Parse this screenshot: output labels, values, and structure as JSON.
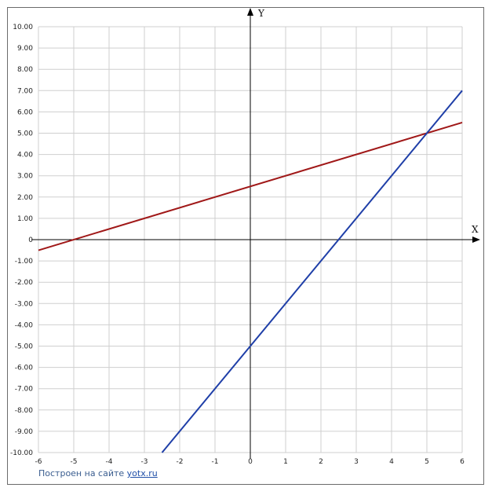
{
  "chart_data": {
    "type": "line",
    "xlabel": "X",
    "ylabel": "Y",
    "xlim": [
      -6,
      6
    ],
    "ylim": [
      -10,
      10
    ],
    "grid": true,
    "x_ticks": [
      "-6",
      "-5",
      "-4",
      "-3",
      "-2",
      "-1",
      "0",
      "1",
      "2",
      "3",
      "4",
      "5",
      "6"
    ],
    "y_ticks": [
      "10.00",
      "9.00",
      "8.00",
      "7.00",
      "6.00",
      "5.00",
      "4.00",
      "3.00",
      "2.00",
      "1.00",
      "0",
      "-1.00",
      "-2.00",
      "-3.00",
      "-4.00",
      "-5.00",
      "-6.00",
      "-7.00",
      "-8.00",
      "-9.00",
      "-10.00"
    ],
    "series": [
      {
        "color": "#a01818",
        "points": [
          [
            -6,
            -0.5
          ],
          [
            6,
            5.5
          ]
        ]
      },
      {
        "color": "#1f3fa8",
        "points": [
          [
            -2.5,
            -10
          ],
          [
            6,
            7
          ]
        ]
      }
    ]
  },
  "footer": {
    "text": "Построен на сайте",
    "link": "yotx.ru"
  }
}
